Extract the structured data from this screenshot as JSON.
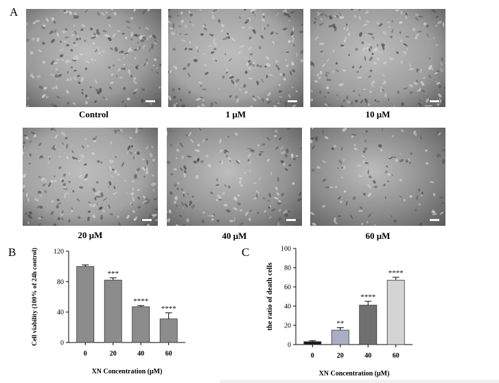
{
  "panel_letters": {
    "a": "A",
    "b": "B",
    "c": "C"
  },
  "micrographs": [
    {
      "label": "Control",
      "density": 0.85,
      "brightness": "#9a9a9a"
    },
    {
      "label": "1 μM",
      "density": 0.8,
      "brightness": "#a4a4a4"
    },
    {
      "label": "10 μM",
      "density": 0.8,
      "brightness": "#9e9e9e"
    },
    {
      "label": "20 μM",
      "density": 0.8,
      "brightness": "#a3a3a3"
    },
    {
      "label": "40 μM",
      "density": 0.65,
      "brightness": "#939393"
    },
    {
      "label": "60 μM",
      "density": 0.45,
      "brightness": "#8a8a8a"
    }
  ],
  "chart_data": [
    {
      "type": "bar",
      "panel": "B",
      "ylabel": "Cell viability (100% of 24h control)",
      "xlabel": "XN Concentration (μM)",
      "categories": [
        "0",
        "20",
        "40",
        "60"
      ],
      "values": [
        100,
        82,
        47,
        31
      ],
      "errors": [
        2,
        3,
        1.5,
        8
      ],
      "significance": [
        "",
        "***",
        "****",
        "****"
      ],
      "bar_colors": [
        "#8c8c8c",
        "#8c8c8c",
        "#8c8c8c",
        "#8c8c8c"
      ],
      "ylim": [
        0,
        120
      ],
      "yticks": [
        0,
        40,
        80,
        120
      ]
    },
    {
      "type": "bar",
      "panel": "C",
      "ylabel": "the ratio of death cells",
      "xlabel": "XN Concentration (μM)",
      "categories": [
        "0",
        "20",
        "40",
        "60"
      ],
      "values": [
        3,
        15,
        41,
        67
      ],
      "errors": [
        1,
        2.5,
        4,
        3
      ],
      "significance": [
        "",
        "**",
        "****",
        "****"
      ],
      "bar_colors": [
        "#1c1c1c",
        "#a9aec4",
        "#6f6f6f",
        "#d4d4d4"
      ],
      "ylim": [
        0,
        100
      ],
      "yticks": [
        0,
        20,
        40,
        60,
        80,
        100
      ]
    }
  ]
}
